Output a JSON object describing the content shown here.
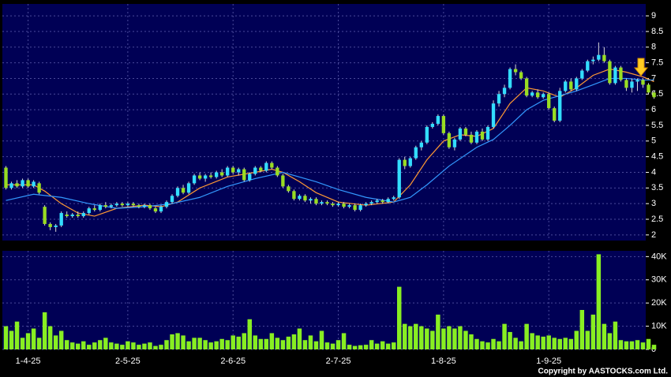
{
  "chart_data": {
    "type": "candlestick",
    "categories": [
      null,
      null,
      null,
      null,
      "1-4-25",
      null,
      null,
      null,
      null,
      null,
      null,
      null,
      null,
      null,
      null,
      null,
      null,
      null,
      null,
      null,
      null,
      null,
      "2-5-25",
      null,
      null,
      null,
      null,
      null,
      null,
      null,
      null,
      null,
      null,
      null,
      null,
      null,
      null,
      null,
      null,
      null,
      null,
      "2-6-25",
      null,
      null,
      null,
      null,
      null,
      null,
      null,
      null,
      null,
      null,
      null,
      null,
      null,
      null,
      null,
      null,
      null,
      null,
      "2-7-25",
      null,
      null,
      null,
      null,
      null,
      null,
      null,
      null,
      null,
      null,
      null,
      null,
      null,
      null,
      null,
      null,
      null,
      null,
      "1-8-25",
      null,
      null,
      null,
      null,
      null,
      null,
      null,
      null,
      null,
      null,
      null,
      null,
      null,
      null,
      null,
      null,
      null,
      null,
      "1-9-25",
      null,
      null,
      null,
      null,
      null,
      null,
      null,
      null,
      null,
      null,
      null,
      null,
      null,
      null,
      null,
      null,
      null
    ],
    "ohlc": [
      [
        4.15,
        4.2,
        3.45,
        3.5
      ],
      [
        3.5,
        3.7,
        3.45,
        3.65
      ],
      [
        3.65,
        3.75,
        3.5,
        3.55
      ],
      [
        3.55,
        3.8,
        3.5,
        3.75
      ],
      [
        3.75,
        3.8,
        3.5,
        3.55
      ],
      [
        3.55,
        3.75,
        3.5,
        3.7
      ],
      [
        3.65,
        3.7,
        3.3,
        3.35
      ],
      [
        2.9,
        2.95,
        2.3,
        2.35
      ],
      [
        2.35,
        2.4,
        2.15,
        2.25
      ],
      [
        2.25,
        2.35,
        2.1,
        2.3
      ],
      [
        2.3,
        2.75,
        2.25,
        2.7
      ],
      [
        2.65,
        2.75,
        2.55,
        2.6
      ],
      [
        2.6,
        2.7,
        2.55,
        2.65
      ],
      [
        2.65,
        2.75,
        2.55,
        2.6
      ],
      [
        2.6,
        2.75,
        2.55,
        2.7
      ],
      [
        2.7,
        2.9,
        2.65,
        2.85
      ],
      [
        2.85,
        2.95,
        2.75,
        2.8
      ],
      [
        2.8,
        3.0,
        2.75,
        2.95
      ],
      [
        2.95,
        3.05,
        2.85,
        2.9
      ],
      [
        2.9,
        3.0,
        2.85,
        2.95
      ],
      [
        2.95,
        3.05,
        2.9,
        3.0
      ],
      [
        3.0,
        3.05,
        2.9,
        2.95
      ],
      [
        2.95,
        3.05,
        2.9,
        3.0
      ],
      [
        3.0,
        3.05,
        2.9,
        2.95
      ],
      [
        2.95,
        3.0,
        2.85,
        2.9
      ],
      [
        2.9,
        3.0,
        2.85,
        2.95
      ],
      [
        2.95,
        3.0,
        2.8,
        2.85
      ],
      [
        2.85,
        2.9,
        2.7,
        2.75
      ],
      [
        2.75,
        2.95,
        2.7,
        2.9
      ],
      [
        2.9,
        3.1,
        2.85,
        3.05
      ],
      [
        3.05,
        3.3,
        3.0,
        3.25
      ],
      [
        3.25,
        3.55,
        3.2,
        3.5
      ],
      [
        3.5,
        3.6,
        3.3,
        3.35
      ],
      [
        3.35,
        3.7,
        3.3,
        3.65
      ],
      [
        3.65,
        3.95,
        3.6,
        3.9
      ],
      [
        3.9,
        4.0,
        3.75,
        3.8
      ],
      [
        3.8,
        3.95,
        3.7,
        3.9
      ],
      [
        3.9,
        4.0,
        3.8,
        3.85
      ],
      [
        3.85,
        4.05,
        3.8,
        4.0
      ],
      [
        4.0,
        4.1,
        3.85,
        3.9
      ],
      [
        3.9,
        4.2,
        3.85,
        4.15
      ],
      [
        4.15,
        4.2,
        3.95,
        4.0
      ],
      [
        4.0,
        4.15,
        3.9,
        4.1
      ],
      [
        4.1,
        4.15,
        3.7,
        3.75
      ],
      [
        3.75,
        4.0,
        3.7,
        3.95
      ],
      [
        3.95,
        4.2,
        3.9,
        4.15
      ],
      [
        4.15,
        4.2,
        4.0,
        4.05
      ],
      [
        4.05,
        4.35,
        4.0,
        4.3
      ],
      [
        4.3,
        4.35,
        4.1,
        4.15
      ],
      [
        4.15,
        4.2,
        3.85,
        3.9
      ],
      [
        3.9,
        3.95,
        3.5,
        3.55
      ],
      [
        3.55,
        3.6,
        3.35,
        3.4
      ],
      [
        3.4,
        3.45,
        3.1,
        3.15
      ],
      [
        3.15,
        3.3,
        3.1,
        3.25
      ],
      [
        3.25,
        3.3,
        3.05,
        3.1
      ],
      [
        3.1,
        3.2,
        3.0,
        3.15
      ],
      [
        3.15,
        3.2,
        2.95,
        3.0
      ],
      [
        3.0,
        3.1,
        2.95,
        3.05
      ],
      [
        3.05,
        3.1,
        2.95,
        3.0
      ],
      [
        3.0,
        3.05,
        2.9,
        2.95
      ],
      [
        2.95,
        3.05,
        2.9,
        3.0
      ],
      [
        3.0,
        3.05,
        2.85,
        2.9
      ],
      [
        2.9,
        3.0,
        2.85,
        2.95
      ],
      [
        2.95,
        3.0,
        2.75,
        2.8
      ],
      [
        2.8,
        3.0,
        2.75,
        2.95
      ],
      [
        2.95,
        3.05,
        2.9,
        3.0
      ],
      [
        3.0,
        3.1,
        2.95,
        3.05
      ],
      [
        3.05,
        3.15,
        3.0,
        3.1
      ],
      [
        3.1,
        3.15,
        3.0,
        3.05
      ],
      [
        3.05,
        3.2,
        3.0,
        3.15
      ],
      [
        3.15,
        3.25,
        3.1,
        3.2
      ],
      [
        3.2,
        4.45,
        3.15,
        4.4
      ],
      [
        4.4,
        4.5,
        4.1,
        4.2
      ],
      [
        4.2,
        4.5,
        4.15,
        4.45
      ],
      [
        4.45,
        4.85,
        4.4,
        4.8
      ],
      [
        4.8,
        5.0,
        4.7,
        4.95
      ],
      [
        4.95,
        5.5,
        4.9,
        5.45
      ],
      [
        5.45,
        5.6,
        5.4,
        5.55
      ],
      [
        5.55,
        5.85,
        5.5,
        5.8
      ],
      [
        5.8,
        5.85,
        5.2,
        5.25
      ],
      [
        5.25,
        5.3,
        4.75,
        4.8
      ],
      [
        4.8,
        5.1,
        4.7,
        5.05
      ],
      [
        5.05,
        5.45,
        5.0,
        5.4
      ],
      [
        5.4,
        5.45,
        5.15,
        5.2
      ],
      [
        5.2,
        5.3,
        4.9,
        4.95
      ],
      [
        4.95,
        5.35,
        4.9,
        5.3
      ],
      [
        5.3,
        5.4,
        5.0,
        5.05
      ],
      [
        5.05,
        5.5,
        5.0,
        5.45
      ],
      [
        5.45,
        6.3,
        5.4,
        6.2
      ],
      [
        6.2,
        6.6,
        6.1,
        6.5
      ],
      [
        6.5,
        6.8,
        6.4,
        6.7
      ],
      [
        6.7,
        7.35,
        6.65,
        7.3
      ],
      [
        7.3,
        7.45,
        7.1,
        7.2
      ],
      [
        7.2,
        7.25,
        6.95,
        7.0
      ],
      [
        7.0,
        7.05,
        6.4,
        6.45
      ],
      [
        6.45,
        6.6,
        6.4,
        6.55
      ],
      [
        6.55,
        6.65,
        6.35,
        6.4
      ],
      [
        6.4,
        6.55,
        6.35,
        6.5
      ],
      [
        6.5,
        6.55,
        6.0,
        6.05
      ],
      [
        6.05,
        6.1,
        5.6,
        5.65
      ],
      [
        5.65,
        6.7,
        5.6,
        6.6
      ],
      [
        6.6,
        6.95,
        6.55,
        6.9
      ],
      [
        6.9,
        7.0,
        6.6,
        6.65
      ],
      [
        6.65,
        7.05,
        6.6,
        7.0
      ],
      [
        7.0,
        7.3,
        6.95,
        7.25
      ],
      [
        7.25,
        7.6,
        7.2,
        7.55
      ],
      [
        7.55,
        7.7,
        7.45,
        7.6
      ],
      [
        7.6,
        8.15,
        7.55,
        7.75
      ],
      [
        7.75,
        8.0,
        7.5,
        7.55
      ],
      [
        7.55,
        7.6,
        6.8,
        6.85
      ],
      [
        6.85,
        7.4,
        6.8,
        7.35
      ],
      [
        7.35,
        7.4,
        6.9,
        6.95
      ],
      [
        6.95,
        7.0,
        6.6,
        6.7
      ],
      [
        6.7,
        7.0,
        6.55,
        6.9
      ],
      [
        6.9,
        7.0,
        6.6,
        6.95
      ],
      [
        6.95,
        7.0,
        6.7,
        6.8
      ],
      [
        6.8,
        6.85,
        6.5,
        6.55
      ],
      [
        6.55,
        6.6,
        6.35,
        6.4
      ]
    ],
    "up_color": "#33ddff",
    "down_color": "#99dd22",
    "ylim": [
      1.82,
      9.38
    ],
    "yticks": [
      2,
      2.5,
      3,
      3.5,
      4,
      4.5,
      5,
      5.5,
      6,
      6.5,
      7,
      7.5,
      8,
      8.5,
      9
    ],
    "grid": true,
    "series": [
      {
        "color": "#ff9933",
        "x": [
          0,
          5,
          7,
          10,
          13,
          16,
          20,
          25,
          28,
          31,
          35,
          40,
          45,
          48,
          50,
          53,
          56,
          60,
          65,
          70,
          73,
          76,
          79,
          82,
          85,
          88,
          91,
          94,
          97,
          100,
          103,
          106,
          109,
          112,
          115,
          117
        ],
        "values": [
          3.6,
          3.6,
          3.4,
          3.0,
          2.7,
          2.6,
          2.85,
          2.95,
          2.9,
          3.05,
          3.5,
          3.85,
          4.0,
          4.1,
          4.0,
          3.7,
          3.35,
          3.05,
          2.95,
          3.05,
          3.6,
          4.4,
          5.0,
          5.2,
          5.15,
          5.4,
          6.2,
          6.7,
          6.6,
          6.4,
          6.7,
          7.1,
          7.3,
          7.2,
          7.05,
          6.9
        ]
      },
      {
        "color": "#3399ff",
        "x": [
          0,
          5,
          10,
          15,
          20,
          25,
          30,
          35,
          40,
          45,
          50,
          53,
          56,
          60,
          65,
          70,
          73,
          76,
          80,
          85,
          88,
          91,
          94,
          97,
          100,
          103,
          106,
          109,
          112,
          115,
          117
        ],
        "values": [
          3.1,
          3.3,
          3.2,
          3.0,
          2.85,
          2.9,
          3.0,
          3.2,
          3.55,
          3.8,
          4.0,
          3.85,
          3.7,
          3.45,
          3.2,
          3.05,
          3.2,
          3.6,
          4.2,
          4.8,
          5.05,
          5.5,
          6.0,
          6.3,
          6.45,
          6.6,
          6.8,
          7.0,
          7.0,
          6.95,
          6.95
        ]
      }
    ],
    "volume": {
      "type": "bar",
      "color": "#88ee22",
      "values": [
        10000,
        8000,
        12000,
        5000,
        7000,
        9000,
        5000,
        16000,
        10000,
        6000,
        8000,
        4000,
        3000,
        2500,
        3500,
        2000,
        3000,
        4000,
        5000,
        3000,
        2500,
        2000,
        3500,
        3000,
        2000,
        2500,
        3000,
        1500,
        2000,
        4000,
        6500,
        7000,
        6000,
        3500,
        5000,
        5000,
        4000,
        3000,
        3500,
        4500,
        4000,
        6000,
        5500,
        7000,
        13000,
        6000,
        4500,
        4500,
        7000,
        5000,
        4000,
        5500,
        6500,
        9000,
        4000,
        6000,
        3500,
        8000,
        3000,
        2500,
        4000,
        7000,
        2000,
        1500,
        1800,
        2000,
        4000,
        2500,
        3500,
        2500,
        3000,
        27000,
        11000,
        10000,
        11000,
        10000,
        9000,
        8000,
        15000,
        9000,
        10000,
        9000,
        10000,
        8000,
        6500,
        4500,
        3500,
        3000,
        4500,
        3500,
        11000,
        7500,
        5000,
        3500,
        11000,
        7000,
        6000,
        5500,
        6000,
        5000,
        4500,
        5000,
        4500,
        8000,
        17000,
        8000,
        15000,
        41000,
        11000,
        7000,
        12000,
        4000,
        3500,
        3500,
        4000,
        3000,
        4500,
        2000
      ],
      "ylim": [
        0,
        42500
      ],
      "yticks": [
        0,
        {
          "value": 10000,
          "label": "10K"
        },
        {
          "value": 20000,
          "label": "20K"
        },
        {
          "value": 30000,
          "label": "30K"
        },
        {
          "value": 40000,
          "label": "40K"
        }
      ]
    }
  },
  "footer": "Copyright by AASTOCKS.com Ltd."
}
